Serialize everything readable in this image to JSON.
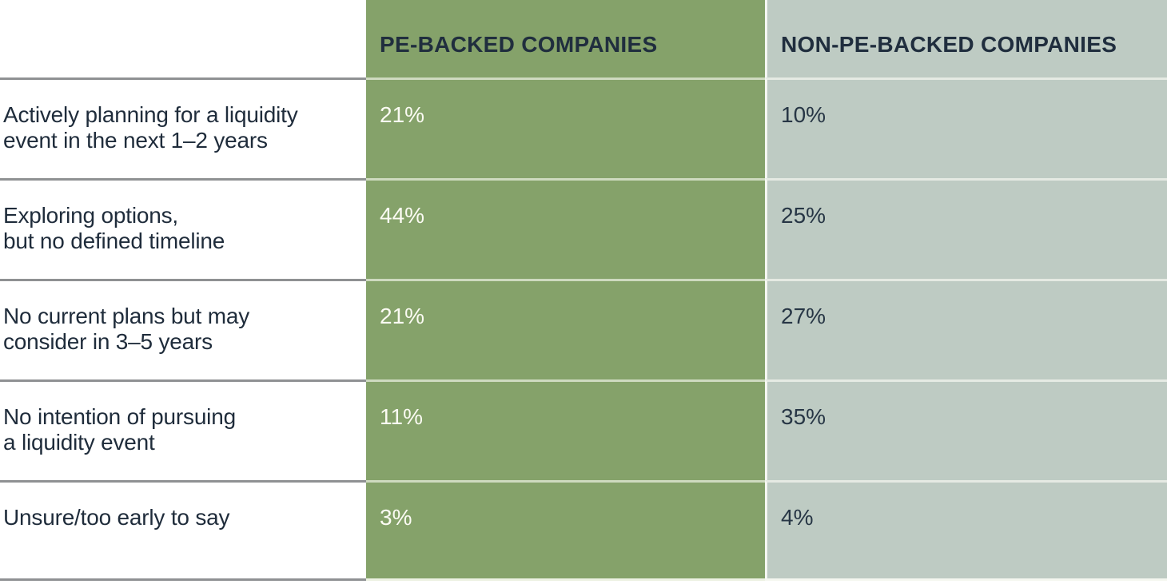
{
  "table": {
    "columns": [
      {
        "label": ""
      },
      {
        "label": "PE-BACKED COMPANIES"
      },
      {
        "label": "NON-PE-BACKED COMPANIES"
      }
    ],
    "rows": [
      {
        "label": "Actively planning for a liquidity\nevent in the next 1–2 years",
        "pe": "21%",
        "non_pe": "10%"
      },
      {
        "label": "Exploring options,\nbut no defined timeline",
        "pe": "44%",
        "non_pe": "25%"
      },
      {
        "label": "No current plans but may\nconsider in 3–5 years",
        "pe": "21%",
        "non_pe": "27%"
      },
      {
        "label": "No intention of pursuing\na liquidity event",
        "pe": "11%",
        "non_pe": "35%"
      },
      {
        "label": "Unsure/too early to say",
        "pe": "3%",
        "non_pe": "4%"
      }
    ]
  },
  "colors": {
    "pe_column": "#85A26A",
    "non_pe_column": "#BECBC3",
    "text_dark": "#1F2C3B",
    "text_light": "#FBFBF3",
    "row_divider_gray": "#8F9193"
  },
  "chart_data": {
    "type": "table",
    "title": "",
    "categories": [
      "Actively planning for a liquidity event in the next 1–2 years",
      "Exploring options, but no defined timeline",
      "No current plans but may consider in 3–5 years",
      "No intention of pursuing a liquidity event",
      "Unsure/too early to say"
    ],
    "series": [
      {
        "name": "PE-backed companies",
        "values": [
          21,
          44,
          21,
          11,
          3
        ]
      },
      {
        "name": "Non-PE-backed companies",
        "values": [
          10,
          25,
          27,
          35,
          4
        ]
      }
    ],
    "value_unit": "%"
  }
}
